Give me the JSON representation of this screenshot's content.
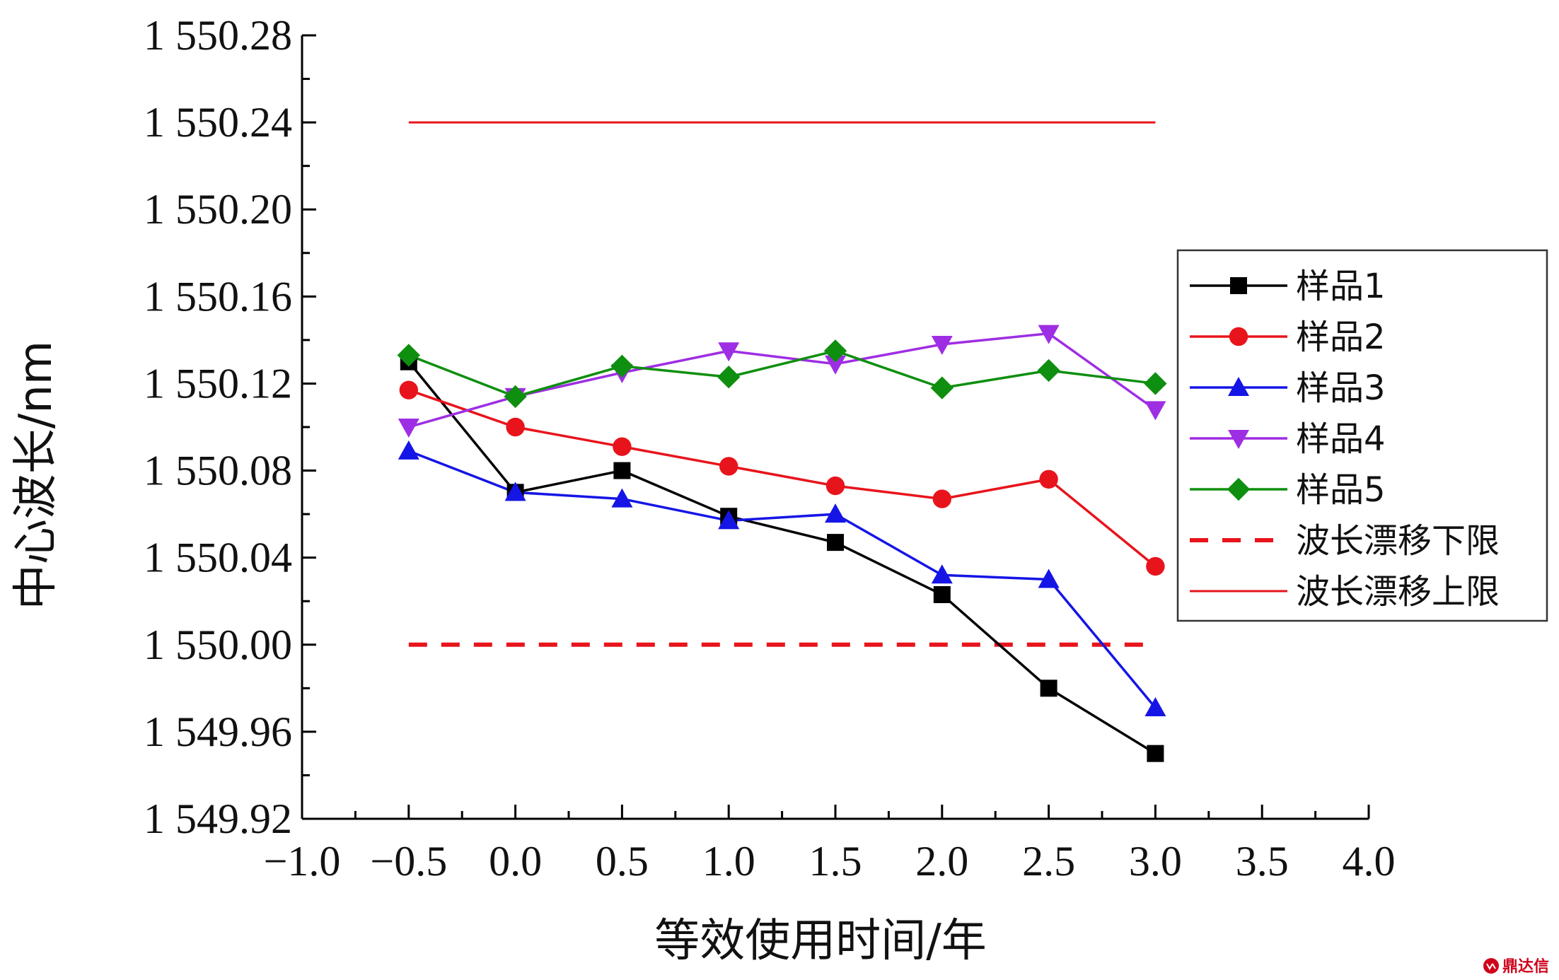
{
  "chart_data": {
    "type": "line",
    "title": "",
    "xlabel": "等效使用时间/年",
    "ylabel": "中心波长/nm",
    "xlim": [
      -1.0,
      4.0
    ],
    "ylim": [
      1549.92,
      1550.28
    ],
    "x_ticks": [
      -1.0,
      -0.5,
      0.0,
      0.5,
      1.0,
      1.5,
      2.0,
      2.5,
      3.0,
      3.5,
      4.0
    ],
    "x_tick_labels": [
      "−1.0",
      "−0.5",
      "0.0",
      "0.5",
      "1.0",
      "1.5",
      "2.0",
      "2.5",
      "3.0",
      "3.5",
      "4.0"
    ],
    "y_ticks": [
      1549.92,
      1549.96,
      1550.0,
      1550.04,
      1550.08,
      1550.12,
      1550.16,
      1550.2,
      1550.24,
      1550.28
    ],
    "y_tick_labels": [
      "1 549.92",
      "1 549.96",
      "1 550.00",
      "1 550.04",
      "1 550.08",
      "1 550.12",
      "1 550.16",
      "1 550.20",
      "1 550.24",
      "1 550.28"
    ],
    "grid": false,
    "legend_position": "right",
    "x": [
      -0.5,
      0.0,
      0.5,
      1.0,
      1.5,
      2.0,
      2.5,
      3.0
    ],
    "series": [
      {
        "name": "样品1",
        "color": "#000000",
        "marker": "square",
        "values": [
          1550.13,
          1550.07,
          1550.08,
          1550.059,
          1550.047,
          1550.023,
          1549.98,
          1549.95
        ]
      },
      {
        "name": "样品2",
        "color": "#e8141c",
        "marker": "circle",
        "values": [
          1550.117,
          1550.1,
          1550.091,
          1550.082,
          1550.073,
          1550.067,
          1550.076,
          1550.036
        ]
      },
      {
        "name": "样品3",
        "color": "#1515e6",
        "marker": "triangle-up",
        "values": [
          1550.089,
          1550.07,
          1550.067,
          1550.057,
          1550.06,
          1550.032,
          1550.03,
          1549.971
        ]
      },
      {
        "name": "样品4",
        "color": "#9e2ee3",
        "marker": "triangle-down",
        "values": [
          1550.1,
          1550.114,
          1550.125,
          1550.135,
          1550.129,
          1550.138,
          1550.143,
          1550.108
        ]
      },
      {
        "name": "样品5",
        "color": "#0f8f0f",
        "marker": "diamond",
        "values": [
          1550.133,
          1550.114,
          1550.128,
          1550.123,
          1550.135,
          1550.118,
          1550.126,
          1550.12
        ]
      }
    ],
    "reference_lines": [
      {
        "name": "波长漂移下限",
        "color": "#e8141c",
        "style": "dashed",
        "y": 1550.0,
        "x_range": [
          -0.5,
          3.0
        ]
      },
      {
        "name": "波长漂移上限",
        "color": "#e8141c",
        "style": "solid",
        "y": 1550.24,
        "x_range": [
          -0.5,
          3.0
        ]
      }
    ]
  },
  "watermark": {
    "text": "鼎达信",
    "icon": "logo-icon"
  }
}
